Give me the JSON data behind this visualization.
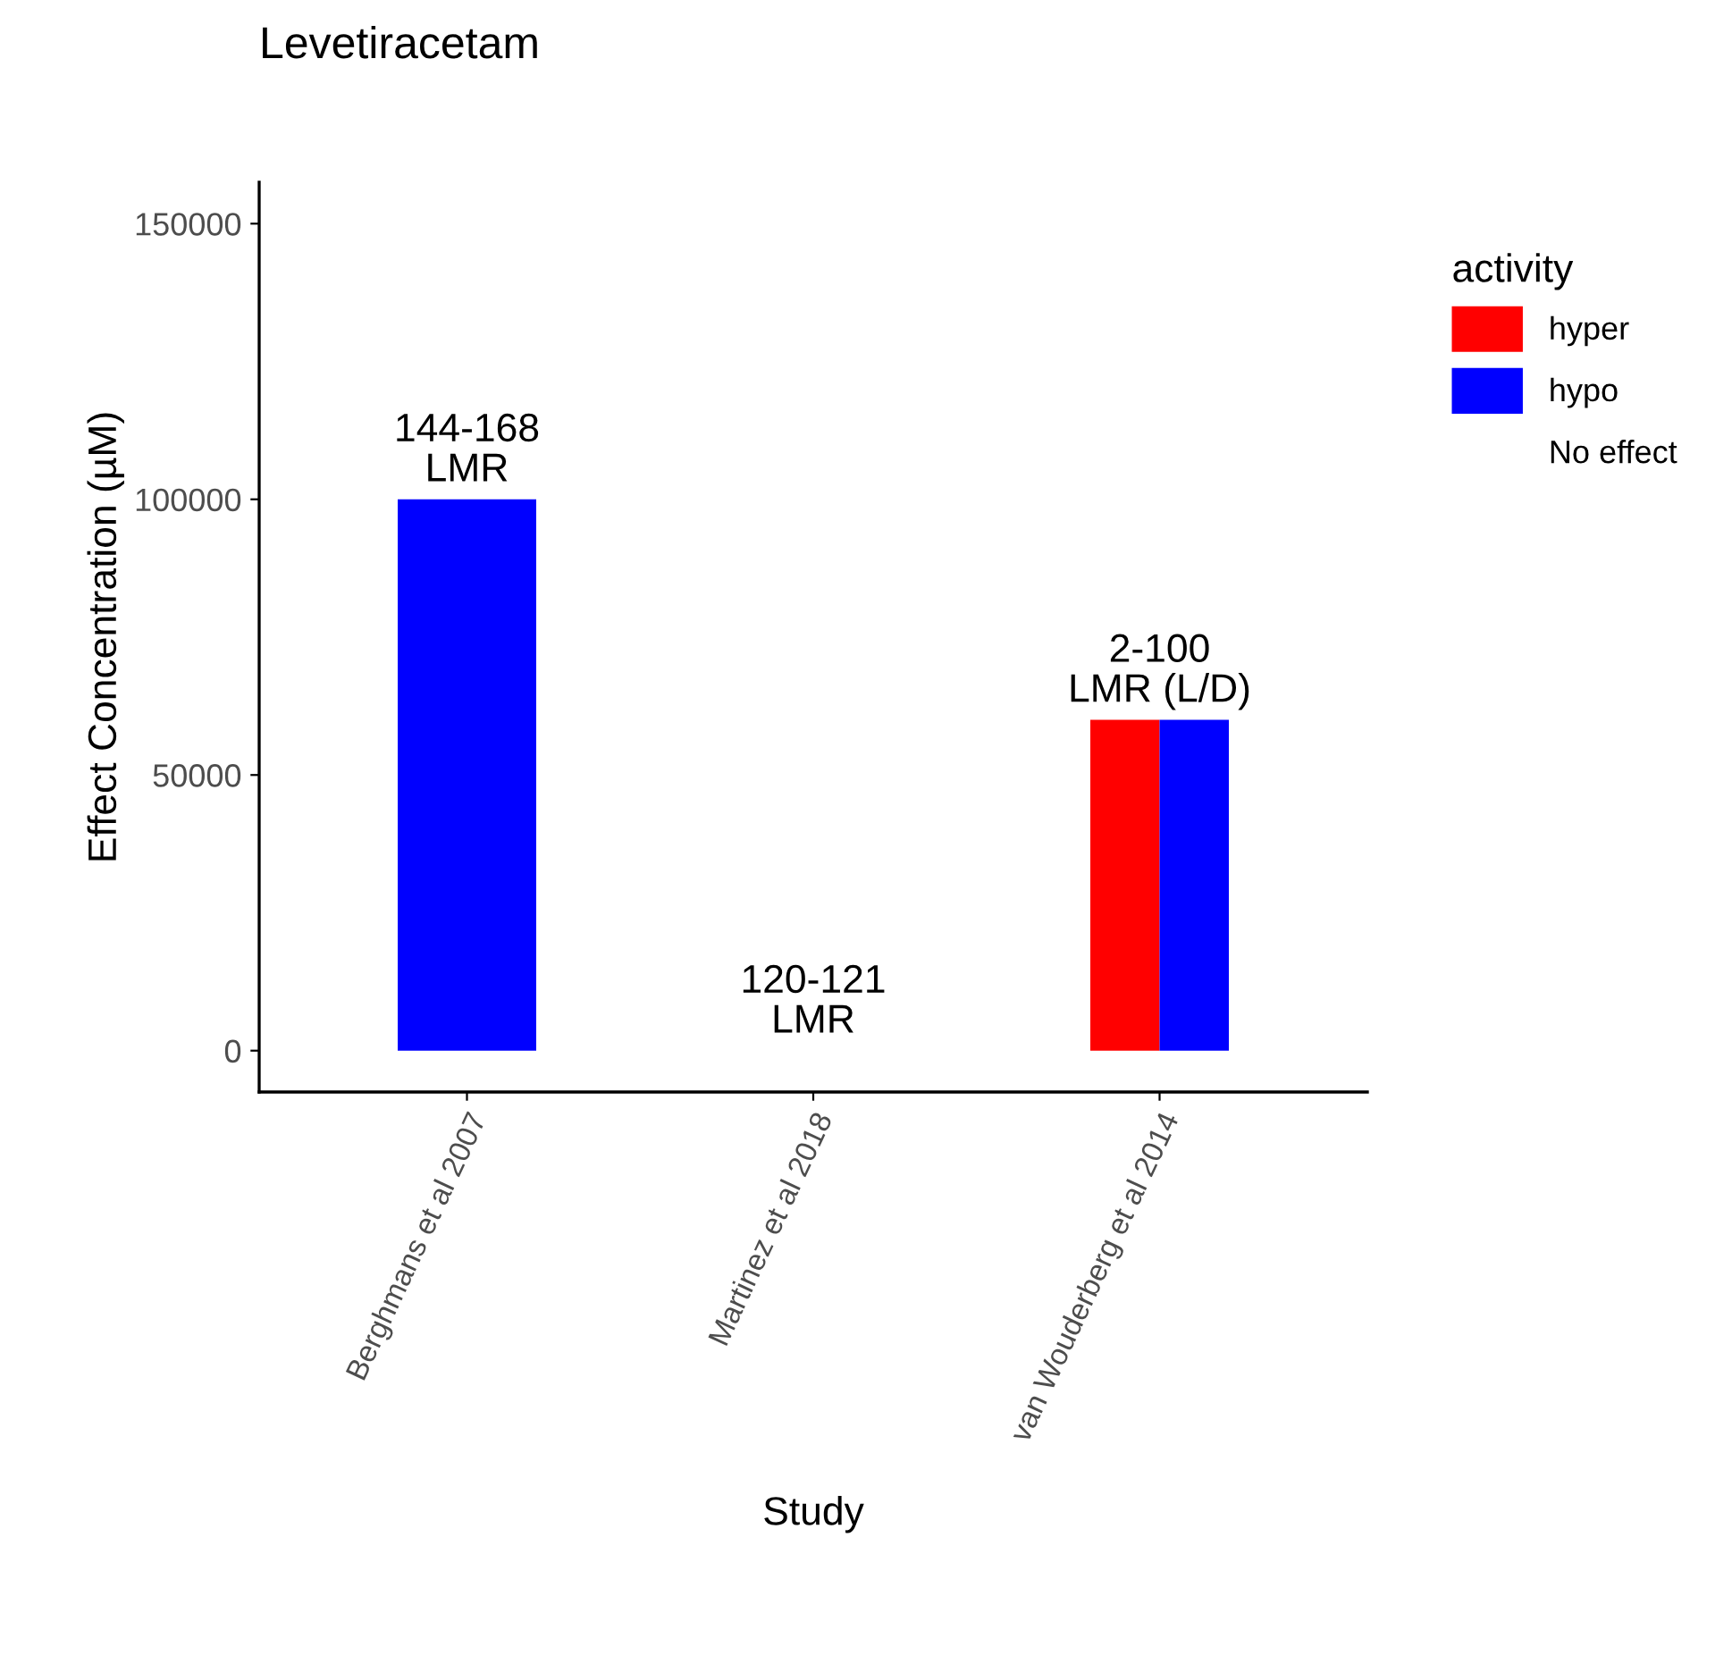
{
  "chart_data": {
    "type": "bar",
    "title": "Levetiracetam",
    "xlabel": "Study",
    "ylabel": "Effect Concentration (µM)",
    "legend_title": "activity",
    "categories": [
      "Berghmans et al 2007",
      "Martinez et al 2018",
      "van Wouderberg et al 2014"
    ],
    "series": [
      {
        "name": "hyper",
        "color": "#ff0000",
        "values": [
          null,
          null,
          60000
        ]
      },
      {
        "name": "hypo",
        "color": "#0000ff",
        "values": [
          100000,
          null,
          60000
        ]
      },
      {
        "name": "No effect",
        "values": [
          null,
          0,
          null
        ]
      }
    ],
    "ylim": [
      -7500,
      157500
    ],
    "yticks": [
      0,
      50000,
      100000,
      150000
    ],
    "grid": false,
    "legend": "right",
    "annotations": [
      "144-168\nLMR",
      "120-121\nLMR",
      "2-100\nLMR (L/D)"
    ]
  }
}
